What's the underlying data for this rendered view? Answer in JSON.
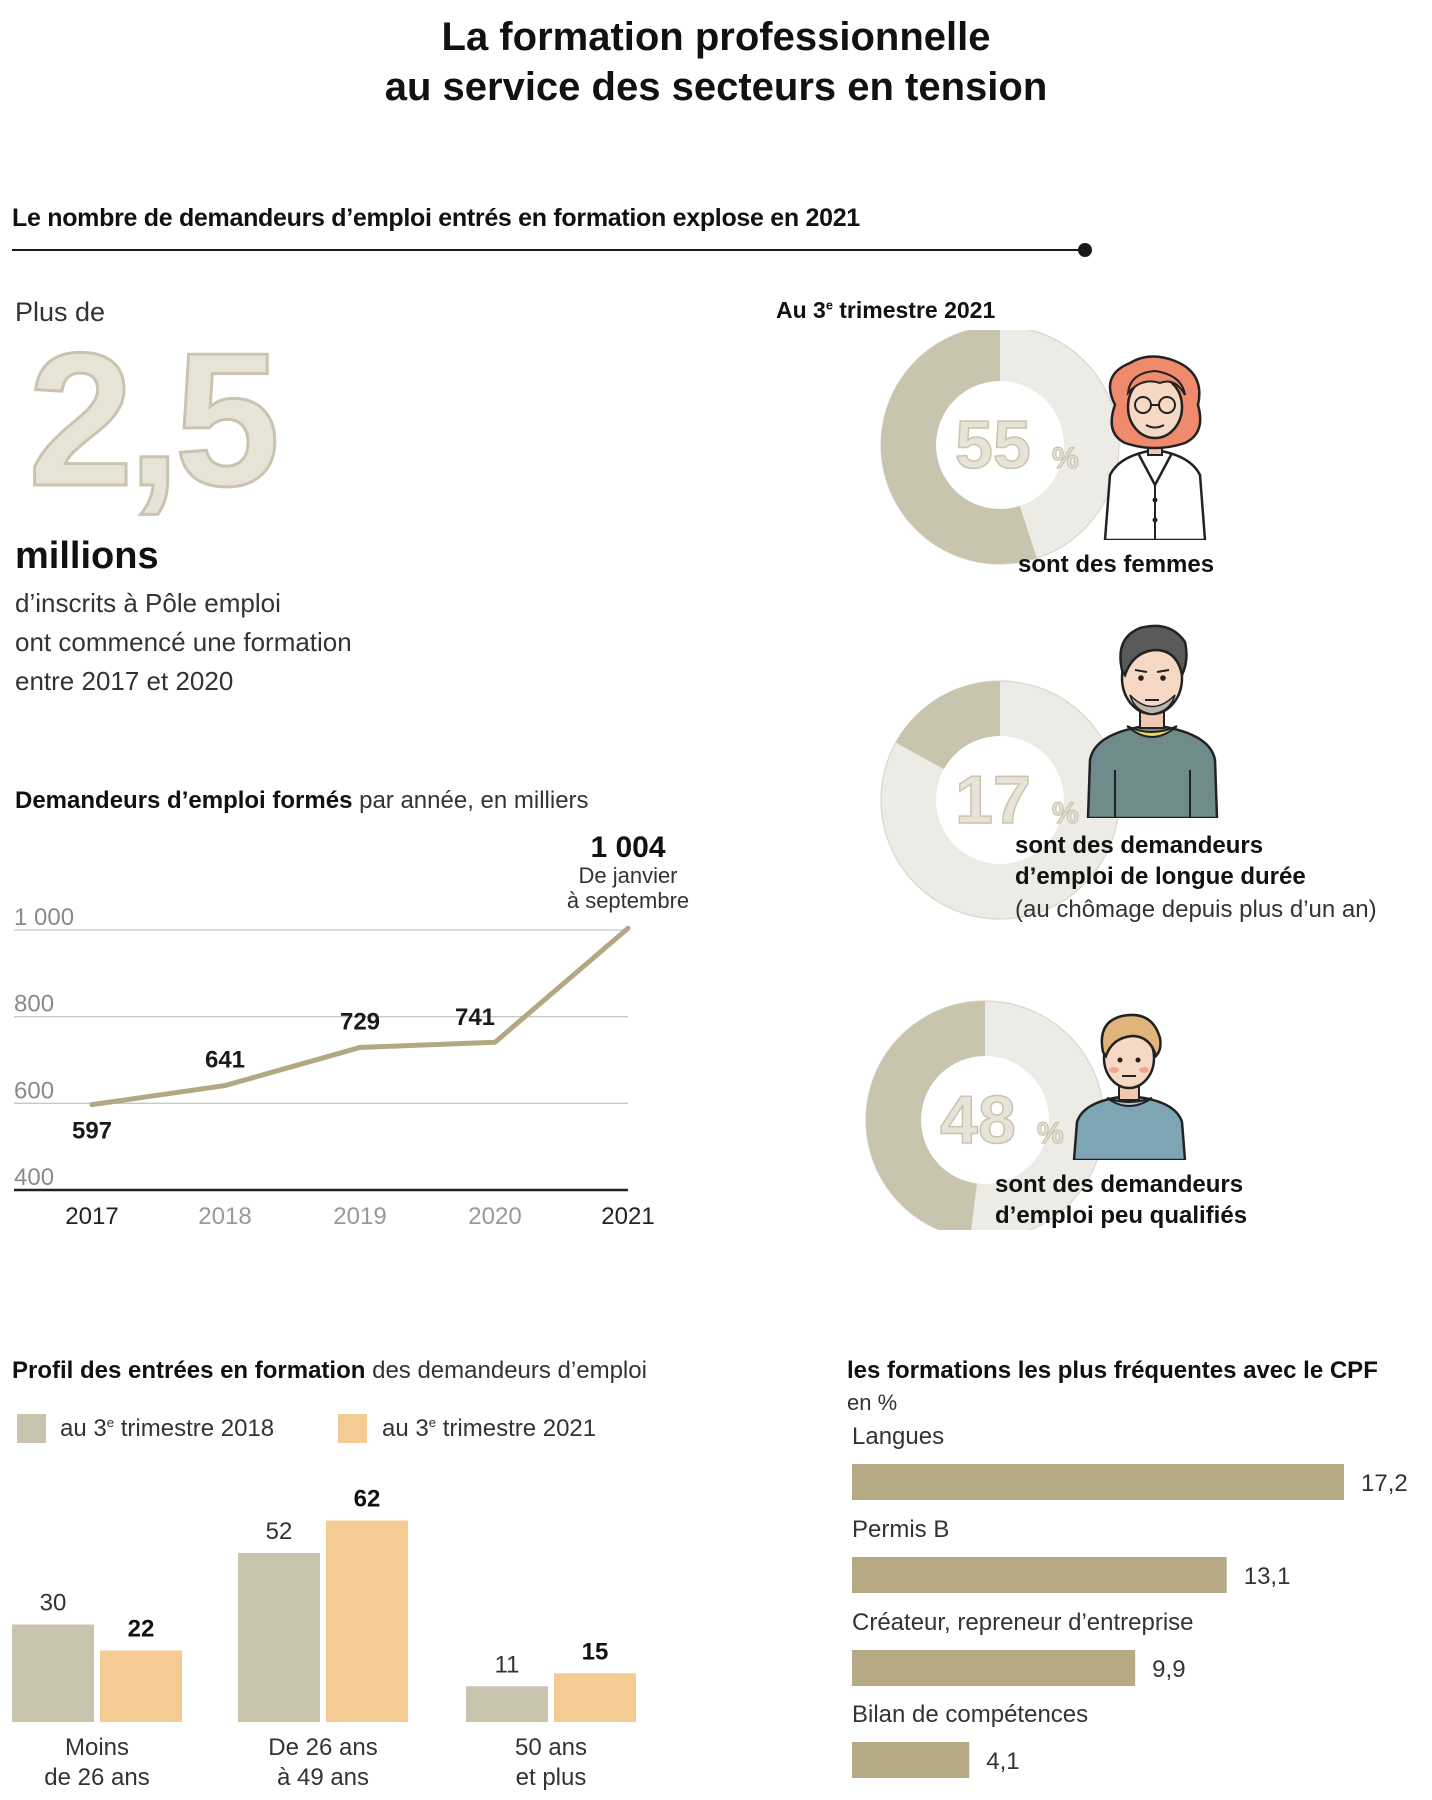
{
  "title_line1": "La formation professionnelle",
  "title_line2": "au service des secteurs en tension",
  "section_heading": "Le nombre de demandeurs d’emploi entrés en formation explose en 2021",
  "headline": {
    "prefix": "Plus de",
    "number": "2,5",
    "unit": "millions",
    "desc_line1": "d’inscrits à Pôle emploi",
    "desc_line2": "ont commencé une formation",
    "desc_line3": "entre 2017 et 2020"
  },
  "colors": {
    "beige": "#c9c4ae",
    "beige_light": "#e7e3d7",
    "line": "#b3a882",
    "peach": "#f5cb94",
    "cpf_bar": "#b5aa84"
  },
  "chart_data": [
    {
      "type": "line",
      "title_bold": "Demandeurs d’emploi formés",
      "title_rest": "par année, en milliers",
      "x": [
        "2017",
        "2018",
        "2019",
        "2020",
        "2021"
      ],
      "values": [
        597,
        641,
        729,
        741,
        1004
      ],
      "value_labels": [
        "597",
        "641",
        "729",
        "741",
        "1 004"
      ],
      "yticks": [
        400,
        600,
        800,
        1000
      ],
      "ytick_labels": [
        "400",
        "600",
        "800",
        "1 000"
      ],
      "ylim": [
        400,
        1000
      ],
      "annotation_line1": "De janvier",
      "annotation_line2": "à septembre"
    },
    {
      "type": "pie",
      "heading_prefix": "Au 3",
      "heading_sup": "e",
      "heading_rest": " trimestre 2021",
      "items": [
        {
          "value": 55,
          "value_label": "55",
          "unit": "%",
          "caption_line1": "sont des femmes",
          "caption_line2": "",
          "caption_sub": ""
        },
        {
          "value": 17,
          "value_label": "17",
          "unit": "%",
          "caption_line1": "sont des demandeurs",
          "caption_line2": "d’emploi de longue durée",
          "caption_sub": "(au chômage depuis plus d’un an)"
        },
        {
          "value": 48,
          "value_label": "48",
          "unit": "%",
          "caption_line1": "sont des demandeurs",
          "caption_line2": "d’emploi peu qualifiés",
          "caption_sub": ""
        }
      ]
    },
    {
      "type": "bar",
      "title_bold": "Profil des entrées en formation",
      "title_rest": "des demandeurs d’emploi",
      "categories": [
        [
          "Moins",
          "de 26 ans"
        ],
        [
          "De 26 ans",
          "à 49 ans"
        ],
        [
          "50 ans",
          "et plus"
        ]
      ],
      "series": [
        {
          "name_prefix": "au 3",
          "name_sup": "e",
          "name_rest": " trimestre 2018",
          "values": [
            30,
            52,
            11
          ]
        },
        {
          "name_prefix": "au 3",
          "name_sup": "e",
          "name_rest": " trimestre 2021",
          "values": [
            22,
            62,
            15
          ]
        }
      ]
    },
    {
      "type": "bar",
      "orientation": "horizontal",
      "title": "les formations les plus fréquentes avec le CPF",
      "subtitle": "en %",
      "categories": [
        "Langues",
        "Permis B",
        "Créateur, repreneur d’entreprise",
        "Bilan de compétences"
      ],
      "values": [
        17.2,
        13.1,
        9.9,
        4.1
      ],
      "value_labels": [
        "17,2",
        "13,1",
        "9,9",
        "4,1"
      ]
    }
  ]
}
